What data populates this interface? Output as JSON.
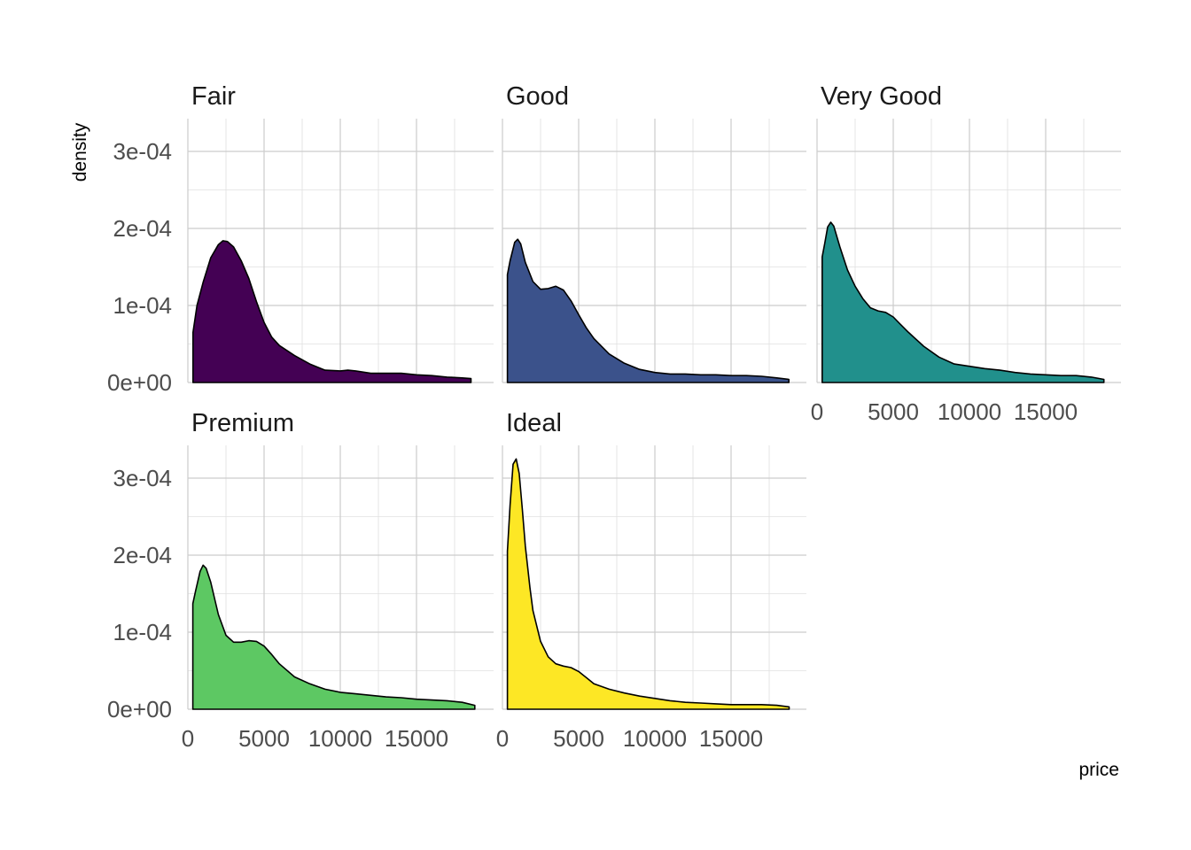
{
  "chart_data": {
    "type": "area",
    "subtype": "faceted-density",
    "xlabel": "price",
    "ylabel": "density",
    "xlim": [
      0,
      19500
    ],
    "ylim": [
      0,
      0.00034
    ],
    "x_ticks": [
      0,
      5000,
      10000,
      15000
    ],
    "x_tick_labels": [
      "0",
      "5000",
      "10000",
      "15000"
    ],
    "y_ticks": [
      0,
      0.0001,
      0.0002,
      0.0003
    ],
    "y_tick_labels": [
      "0e+00",
      "1e-04",
      "2e-04",
      "3e-04"
    ],
    "grid": true,
    "layout": {
      "rows": 2,
      "cols": 3
    },
    "series": [
      {
        "name": "Fair",
        "color": "#440154",
        "row": 0,
        "col": 0,
        "show_x_labels": false,
        "points": [
          [
            337,
            6.5e-05
          ],
          [
            600,
            0.0001
          ],
          [
            1000,
            0.00013
          ],
          [
            1500,
            0.000162
          ],
          [
            2000,
            0.000179
          ],
          [
            2300,
            0.000184
          ],
          [
            2600,
            0.000183
          ],
          [
            3000,
            0.000176
          ],
          [
            3500,
            0.000158
          ],
          [
            4000,
            0.000135
          ],
          [
            4500,
            0.000105
          ],
          [
            5000,
            7.8e-05
          ],
          [
            5500,
            5.9e-05
          ],
          [
            6000,
            4.8e-05
          ],
          [
            7000,
            3.5e-05
          ],
          [
            8000,
            2.4e-05
          ],
          [
            9000,
            1.6e-05
          ],
          [
            10000,
            1.5e-05
          ],
          [
            10500,
            1.6e-05
          ],
          [
            11000,
            1.5e-05
          ],
          [
            12000,
            1.2e-05
          ],
          [
            13000,
            1.2e-05
          ],
          [
            14000,
            1.2e-05
          ],
          [
            15000,
            1e-05
          ],
          [
            16000,
            9e-06
          ],
          [
            17000,
            7e-06
          ],
          [
            18000,
            6e-06
          ],
          [
            18574,
            5e-06
          ]
        ]
      },
      {
        "name": "Good",
        "color": "#3B528B",
        "row": 0,
        "col": 1,
        "show_x_labels": false,
        "points": [
          [
            327,
            0.00014
          ],
          [
            500,
            0.000158
          ],
          [
            800,
            0.000182
          ],
          [
            1000,
            0.000186
          ],
          [
            1200,
            0.00018
          ],
          [
            1500,
            0.000156
          ],
          [
            2000,
            0.000131
          ],
          [
            2500,
            0.000121
          ],
          [
            3000,
            0.000122
          ],
          [
            3500,
            0.000125
          ],
          [
            4000,
            0.00012
          ],
          [
            4500,
            0.000106
          ],
          [
            5000,
            8.8e-05
          ],
          [
            5500,
            7.1e-05
          ],
          [
            6000,
            5.7e-05
          ],
          [
            7000,
            3.7e-05
          ],
          [
            8000,
            2.5e-05
          ],
          [
            9000,
            1.7e-05
          ],
          [
            10000,
            1.3e-05
          ],
          [
            11000,
            1.1e-05
          ],
          [
            12000,
            1.1e-05
          ],
          [
            13000,
            1e-05
          ],
          [
            14000,
            1e-05
          ],
          [
            15000,
            9e-06
          ],
          [
            16000,
            9e-06
          ],
          [
            17000,
            8e-06
          ],
          [
            18000,
            6e-06
          ],
          [
            18788,
            4e-06
          ]
        ]
      },
      {
        "name": "Very Good",
        "color": "#21908C",
        "row": 0,
        "col": 2,
        "show_x_labels": true,
        "points": [
          [
            336,
            0.000163
          ],
          [
            500,
            0.00018
          ],
          [
            700,
            0.000202
          ],
          [
            900,
            0.000208
          ],
          [
            1100,
            0.000203
          ],
          [
            1500,
            0.000176
          ],
          [
            2000,
            0.000146
          ],
          [
            2500,
            0.000125
          ],
          [
            3000,
            0.000109
          ],
          [
            3500,
            9.7e-05
          ],
          [
            4000,
            9.3e-05
          ],
          [
            4500,
            9.1e-05
          ],
          [
            5000,
            8.5e-05
          ],
          [
            5500,
            7.5e-05
          ],
          [
            6000,
            6.5e-05
          ],
          [
            7000,
            4.7e-05
          ],
          [
            8000,
            3.3e-05
          ],
          [
            9000,
            2.4e-05
          ],
          [
            10000,
            2.1e-05
          ],
          [
            11000,
            1.8e-05
          ],
          [
            12000,
            1.6e-05
          ],
          [
            13000,
            1.3e-05
          ],
          [
            14000,
            1.1e-05
          ],
          [
            15000,
            1e-05
          ],
          [
            16000,
            9e-06
          ],
          [
            17000,
            9e-06
          ],
          [
            18000,
            7e-06
          ],
          [
            18818,
            4e-06
          ]
        ]
      },
      {
        "name": "Premium",
        "color": "#5DC863",
        "row": 1,
        "col": 0,
        "show_x_labels": true,
        "points": [
          [
            326,
            0.000137
          ],
          [
            500,
            0.000153
          ],
          [
            800,
            0.000179
          ],
          [
            1000,
            0.000187
          ],
          [
            1200,
            0.000183
          ],
          [
            1500,
            0.000165
          ],
          [
            2000,
            0.000123
          ],
          [
            2500,
            9.6e-05
          ],
          [
            3000,
            8.7e-05
          ],
          [
            3500,
            8.7e-05
          ],
          [
            4000,
            8.9e-05
          ],
          [
            4500,
            8.8e-05
          ],
          [
            5000,
            8.2e-05
          ],
          [
            5500,
            7.1e-05
          ],
          [
            6000,
            5.9e-05
          ],
          [
            7000,
            4.2e-05
          ],
          [
            8000,
            3.3e-05
          ],
          [
            9000,
            2.6e-05
          ],
          [
            10000,
            2.2e-05
          ],
          [
            11000,
            2e-05
          ],
          [
            12000,
            1.8e-05
          ],
          [
            13000,
            1.6e-05
          ],
          [
            14000,
            1.5e-05
          ],
          [
            15000,
            1.3e-05
          ],
          [
            16000,
            1.2e-05
          ],
          [
            17000,
            1.1e-05
          ],
          [
            18000,
            9e-06
          ],
          [
            18823,
            5e-06
          ]
        ]
      },
      {
        "name": "Ideal",
        "color": "#FDE725",
        "row": 1,
        "col": 1,
        "show_x_labels": true,
        "points": [
          [
            326,
            0.000205
          ],
          [
            500,
            0.000265
          ],
          [
            700,
            0.000318
          ],
          [
            900,
            0.000325
          ],
          [
            1100,
            0.000306
          ],
          [
            1300,
            0.00026
          ],
          [
            1500,
            0.000212
          ],
          [
            1800,
            0.000158
          ],
          [
            2000,
            0.000128
          ],
          [
            2500,
            8.8e-05
          ],
          [
            3000,
            6.8e-05
          ],
          [
            3500,
            5.9e-05
          ],
          [
            4000,
            5.6e-05
          ],
          [
            4500,
            5.4e-05
          ],
          [
            5000,
            4.9e-05
          ],
          [
            5500,
            4.1e-05
          ],
          [
            6000,
            3.3e-05
          ],
          [
            7000,
            2.6e-05
          ],
          [
            8000,
            2.1e-05
          ],
          [
            9000,
            1.7e-05
          ],
          [
            10000,
            1.4e-05
          ],
          [
            11000,
            1.1e-05
          ],
          [
            12000,
            9e-06
          ],
          [
            13000,
            8e-06
          ],
          [
            14000,
            7e-06
          ],
          [
            15000,
            6e-06
          ],
          [
            16000,
            6e-06
          ],
          [
            17000,
            6e-06
          ],
          [
            18000,
            5e-06
          ],
          [
            18806,
            3e-06
          ]
        ]
      }
    ]
  }
}
